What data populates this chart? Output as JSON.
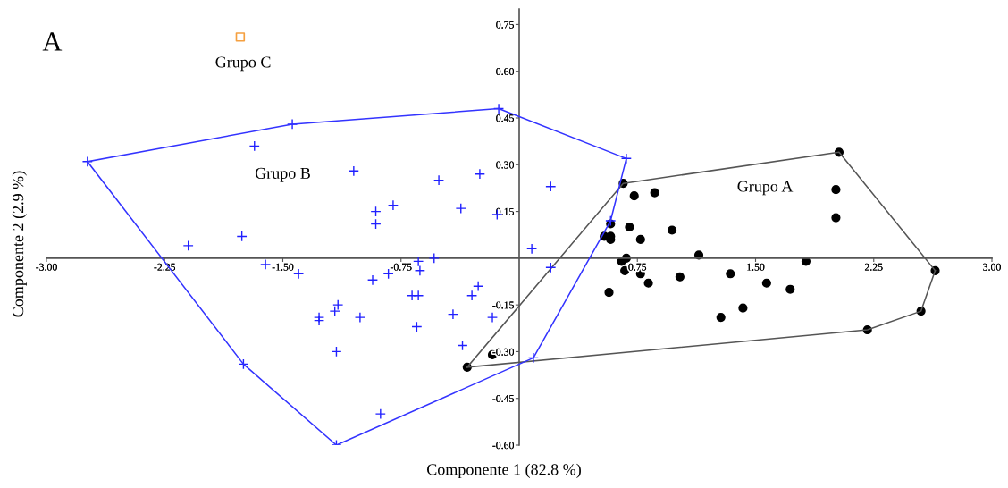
{
  "chart_data": {
    "type": "scatter",
    "xlabel": "Componente 1 (82.8 %)",
    "ylabel": "Componente 2 (2.9 %)",
    "xlim": [
      -3.0,
      3.0
    ],
    "ylim": [
      -0.6,
      0.8
    ],
    "xticks": [
      {
        "value": -3.0,
        "label": "-3.00"
      },
      {
        "value": -2.25,
        "label": "-2.25"
      },
      {
        "value": -1.5,
        "label": "-1.50"
      },
      {
        "value": -0.75,
        "label": "-0.75"
      },
      {
        "value": 0.75,
        "label": "0.75"
      },
      {
        "value": 1.5,
        "label": "1.50"
      },
      {
        "value": 2.25,
        "label": "2.25"
      },
      {
        "value": 3.0,
        "label": "3.00"
      }
    ],
    "yticks": [
      {
        "value": -0.6,
        "label": "-0.60"
      },
      {
        "value": -0.45,
        "label": "-0.45"
      },
      {
        "value": -0.3,
        "label": "-0.30"
      },
      {
        "value": -0.15,
        "label": "-0.15"
      },
      {
        "value": 0.15,
        "label": "0.15"
      },
      {
        "value": 0.3,
        "label": "0.30"
      },
      {
        "value": 0.45,
        "label": "0.45"
      },
      {
        "value": 0.6,
        "label": "0.60"
      },
      {
        "value": 0.75,
        "label": "0.75"
      }
    ],
    "grid": false,
    "legend": false,
    "series": [
      {
        "type": "line",
        "color": "#3333ff",
        "marker": "none",
        "x": [
          -2.74,
          -1.44,
          -0.13,
          0.68
        ],
        "values": [
          0.31,
          0.43,
          0.48,
          0.32
        ]
      },
      {
        "type": "line",
        "color": "#3333ff",
        "marker": "none",
        "x": [
          -2.74,
          -1.75,
          -1.16,
          0.09,
          0.58,
          0.68
        ],
        "values": [
          0.31,
          -0.34,
          -0.6,
          -0.32,
          0.12,
          0.32
        ]
      },
      {
        "type": "line",
        "color": "#555555",
        "marker": "none",
        "x": [
          -0.33,
          0.66,
          2.03,
          2.64
        ],
        "values": [
          -0.35,
          0.24,
          0.34,
          -0.04
        ]
      },
      {
        "type": "line",
        "color": "#555555",
        "marker": "none",
        "x": [
          -0.33,
          2.21,
          2.55,
          2.64
        ],
        "values": [
          -0.35,
          -0.23,
          -0.17,
          -0.04
        ]
      },
      {
        "name": "Grupo B",
        "color": "#2020ff",
        "marker": "cross",
        "x": [
          -2.74,
          -1.44,
          -1.68,
          -2.1,
          -1.76,
          -1.61,
          -1.4,
          -1.75,
          -0.13,
          -1.05,
          -0.51,
          -0.25,
          -0.91,
          -0.91,
          -0.8,
          -0.37,
          -0.14,
          0.2,
          0.08,
          0.2,
          -0.54,
          -0.64,
          -0.63,
          -0.83,
          -0.93,
          -0.64,
          -0.68,
          -0.26,
          -0.3,
          -1.15,
          -1.17,
          -1.27,
          -1.27,
          -1.01,
          -0.42,
          -0.17,
          -0.65,
          -0.36,
          -1.16,
          -0.88,
          -1.16,
          0.09,
          0.68,
          0.58
        ],
        "values": [
          0.31,
          0.43,
          0.36,
          0.04,
          0.07,
          -0.02,
          -0.05,
          -0.34,
          0.48,
          0.28,
          0.25,
          0.27,
          0.15,
          0.11,
          0.17,
          0.16,
          0.14,
          0.23,
          0.03,
          -0.03,
          0.0,
          -0.01,
          -0.04,
          -0.05,
          -0.07,
          -0.12,
          -0.12,
          -0.09,
          -0.12,
          -0.15,
          -0.17,
          -0.19,
          -0.2,
          -0.19,
          -0.18,
          -0.19,
          -0.22,
          -0.28,
          -0.3,
          -0.5,
          -0.6,
          -0.32,
          0.32,
          0.12
        ]
      },
      {
        "name": "Grupo A",
        "color": "#000000",
        "marker": "circle",
        "x": [
          0.66,
          0.73,
          0.86,
          0.58,
          0.7,
          0.97,
          0.54,
          0.58,
          0.58,
          0.77,
          1.14,
          0.68,
          0.65,
          0.67,
          0.77,
          0.82,
          1.02,
          1.34,
          0.57,
          1.28,
          1.42,
          1.57,
          2.03,
          2.01,
          2.01,
          1.82,
          1.72,
          2.64,
          2.55,
          2.21,
          -0.17,
          -0.33
        ],
        "values": [
          0.24,
          0.2,
          0.21,
          0.11,
          0.1,
          0.09,
          0.07,
          0.07,
          0.06,
          0.06,
          0.01,
          0.0,
          -0.01,
          -0.04,
          -0.05,
          -0.08,
          -0.06,
          -0.05,
          -0.11,
          -0.19,
          -0.16,
          -0.08,
          0.34,
          0.22,
          0.13,
          -0.01,
          -0.1,
          -0.04,
          -0.17,
          -0.23,
          -0.31,
          -0.35
        ]
      },
      {
        "name": "Grupo C",
        "color": "#f5a040",
        "marker": "square",
        "x": [
          -1.77
        ],
        "values": [
          0.71
        ]
      }
    ],
    "annotations": [
      "A"
    ]
  }
}
